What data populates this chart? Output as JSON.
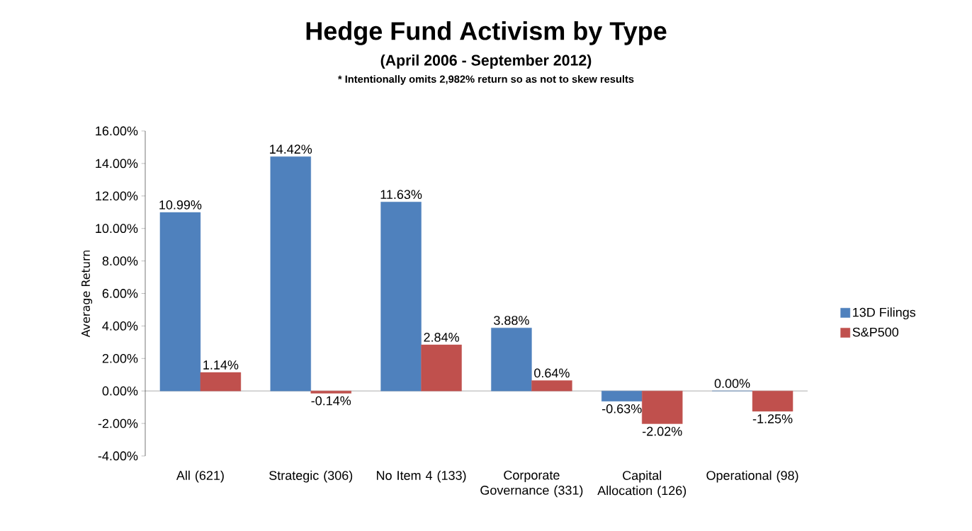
{
  "chart_data": {
    "type": "bar",
    "title": "Hedge Fund Activism by Type",
    "subtitle": "(April 2006 - September 2012)",
    "annotations": [
      "* Intentionally omits 2,982% return so as not to skew results"
    ],
    "ylabel": "Average Return",
    "categories": [
      "All (621)",
      "Strategic (306)",
      "No Item 4 (133)",
      "Corporate Governance (331)",
      "Capital Allocation (126)",
      "Operational (98)"
    ],
    "series": [
      {
        "name": "13D Filings",
        "color": "#4f81bd",
        "values": [
          10.99,
          14.42,
          11.63,
          3.88,
          -0.63,
          0.0
        ],
        "value_labels": [
          "10.99%",
          "14.42%",
          "11.63%",
          "3.88%",
          "-0.63%",
          "0.00%"
        ]
      },
      {
        "name": "S&P500",
        "color": "#c0504d",
        "values": [
          1.14,
          -0.14,
          2.84,
          0.64,
          -2.02,
          -1.25
        ],
        "value_labels": [
          "1.14%",
          "-0.14%",
          "2.84%",
          "0.64%",
          "-2.02%",
          "-1.25%"
        ]
      }
    ],
    "ylim": [
      -4,
      16
    ],
    "yticks": [
      {
        "value": -4,
        "label": "-4.00%"
      },
      {
        "value": -2,
        "label": "-2.00%"
      },
      {
        "value": 0,
        "label": "0.00%"
      },
      {
        "value": 2,
        "label": "2.00%"
      },
      {
        "value": 4,
        "label": "4.00%"
      },
      {
        "value": 6,
        "label": "6.00%"
      },
      {
        "value": 8,
        "label": "8.00%"
      },
      {
        "value": 10,
        "label": "10.00%"
      },
      {
        "value": 12,
        "label": "12.00%"
      },
      {
        "value": 14,
        "label": "14.00%"
      },
      {
        "value": 16,
        "label": "16.00%"
      }
    ],
    "legend": "right"
  }
}
